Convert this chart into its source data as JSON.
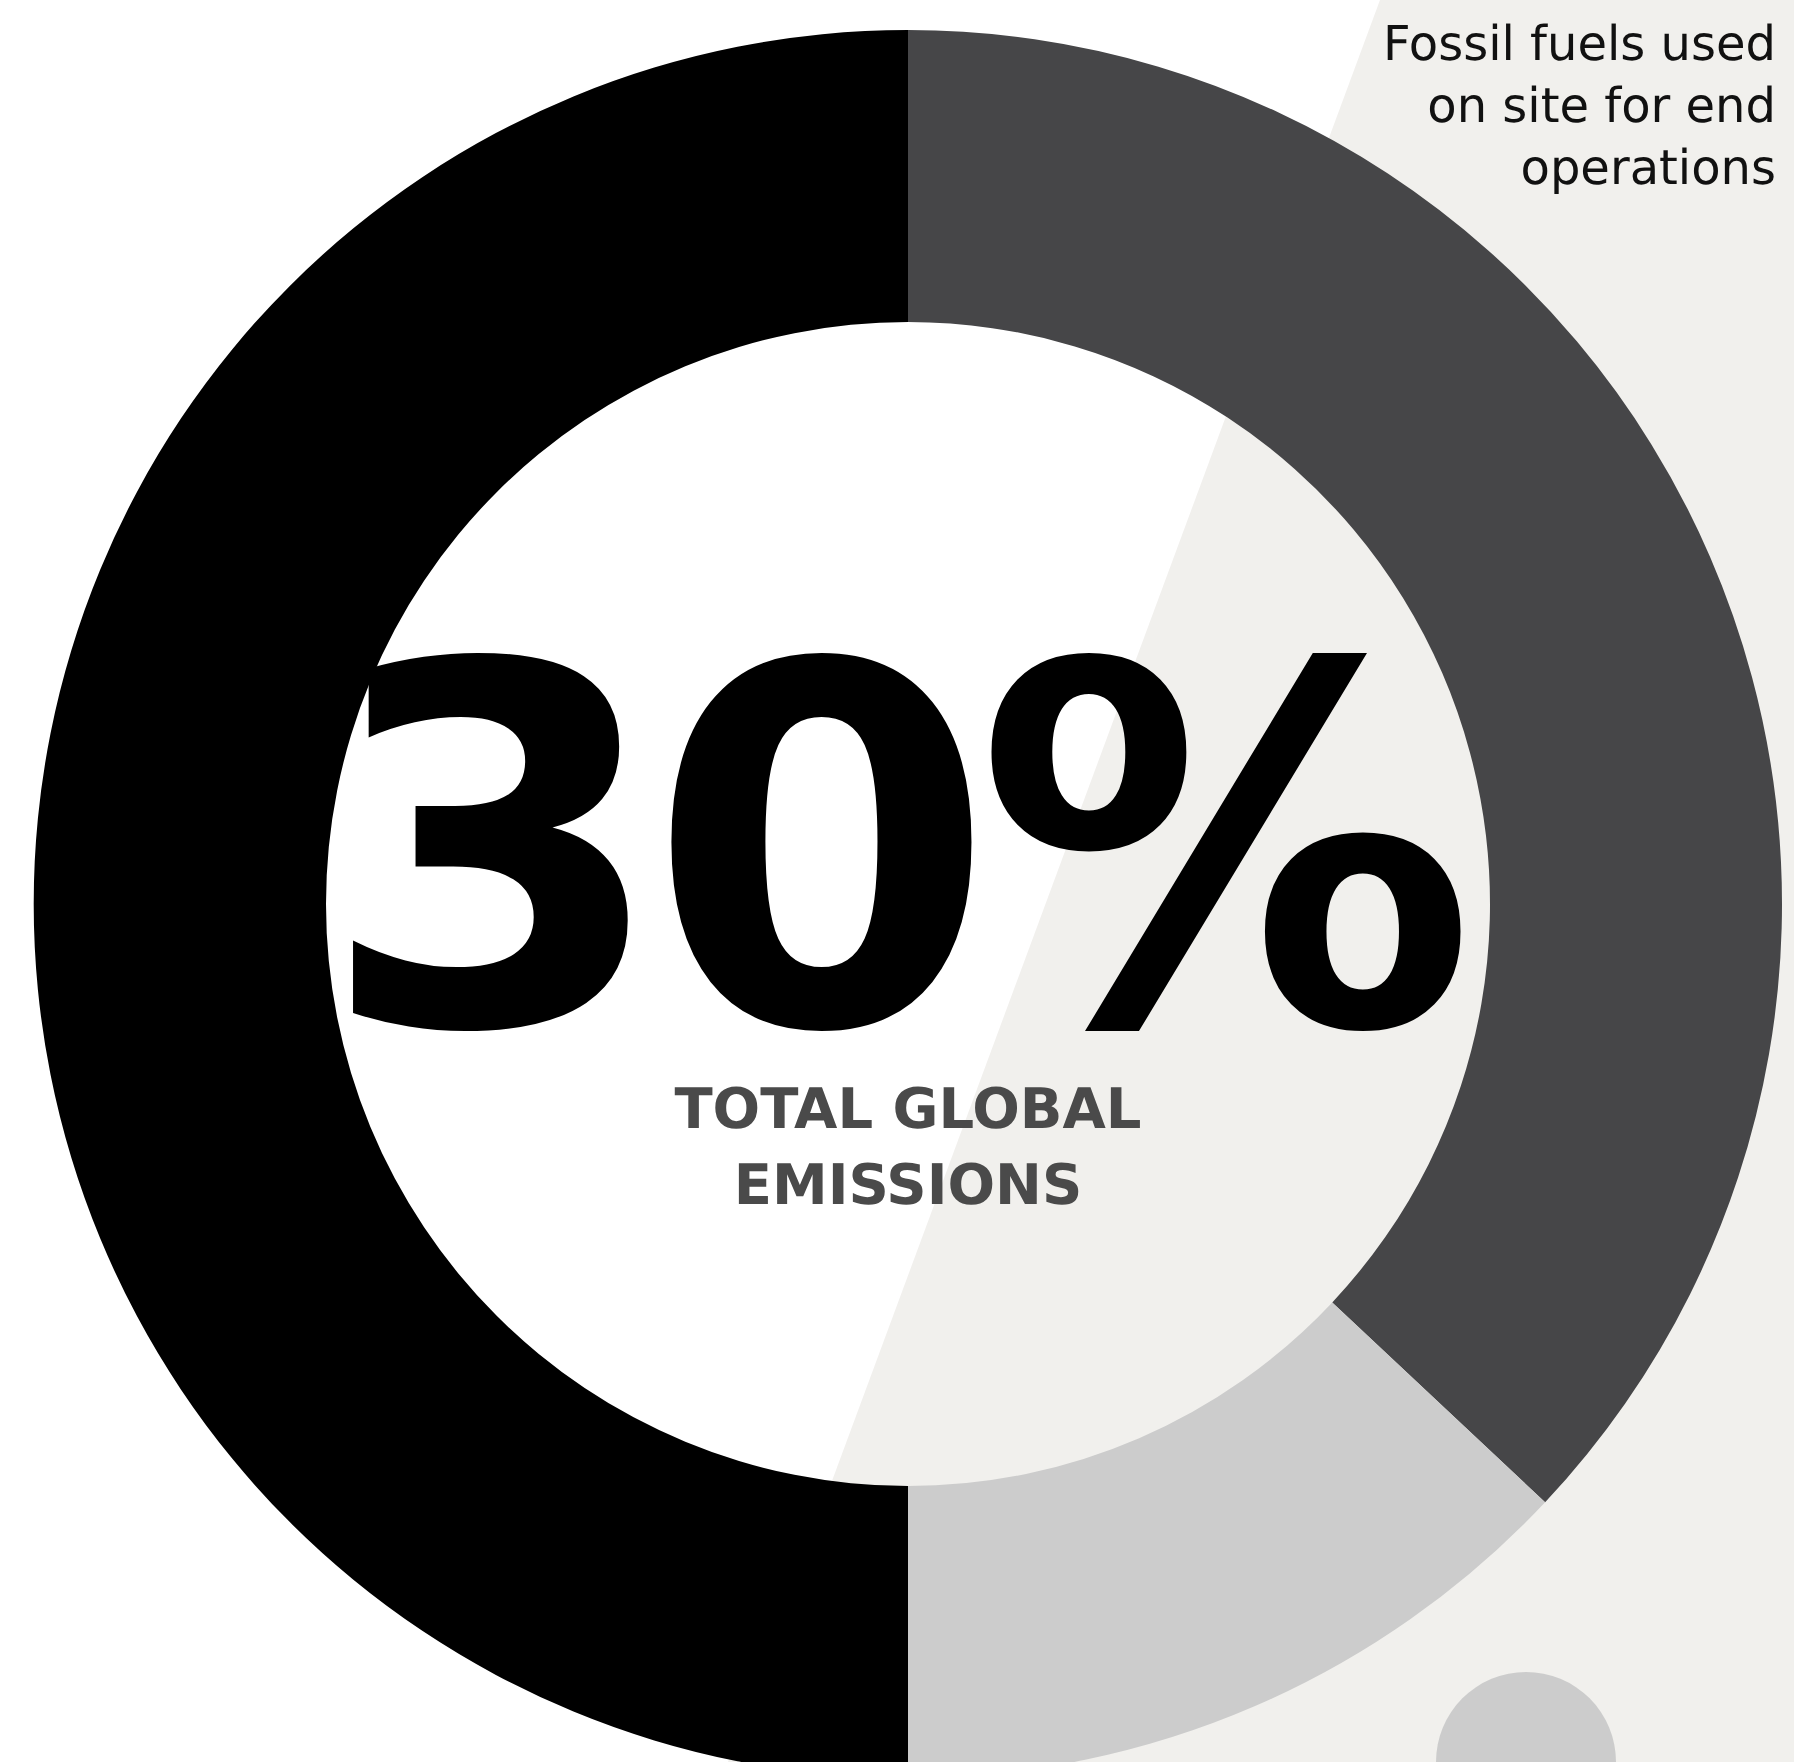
{
  "chart_data": {
    "type": "donut",
    "categories": [
      "Fossil fuels used on site for end operations",
      null,
      null
    ],
    "values": [
      37,
      13,
      50
    ],
    "colors": [
      "#464648",
      "#cccccc",
      "#000000"
    ],
    "annotations": [
      "30%",
      "TOTAL GLOBAL EMISSIONS"
    ]
  }
}
